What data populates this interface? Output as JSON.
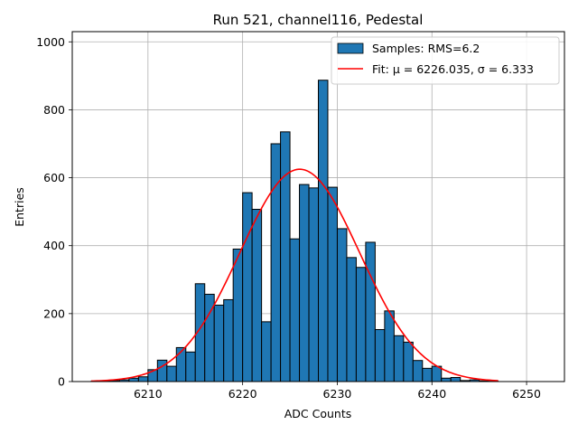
{
  "chart_data": {
    "type": "bar",
    "title": "Run 521, channel116, Pedestal",
    "xlabel": "ADC Counts",
    "ylabel": "Entries",
    "xlim": [
      6202,
      6254
    ],
    "ylim": [
      0,
      1030
    ],
    "xticks": [
      6210,
      6220,
      6230,
      6240,
      6250
    ],
    "yticks": [
      0,
      200,
      400,
      600,
      800,
      1000
    ],
    "grid": true,
    "legend_position": "top-right",
    "legend": [
      "Samples: RMS=6.2",
      "Fit: μ = 6226.035, σ = 6.333"
    ],
    "bar_color": "#1f77b4",
    "fit_color": "#ff0000",
    "bin_width": 1,
    "bin_starts": [
      6204,
      6205,
      6206,
      6207,
      6208,
      6209,
      6210,
      6211,
      6212,
      6213,
      6214,
      6215,
      6216,
      6217,
      6218,
      6219,
      6220,
      6221,
      6222,
      6223,
      6224,
      6225,
      6226,
      6227,
      6228,
      6229,
      6230,
      6231,
      6232,
      6233,
      6234,
      6235,
      6236,
      6237,
      6238,
      6239,
      6240,
      6241,
      6242,
      6243,
      6244,
      6245,
      6246
    ],
    "counts": [
      1,
      2,
      3,
      5,
      10,
      14,
      35,
      63,
      45,
      100,
      87,
      288,
      257,
      225,
      241,
      390,
      556,
      507,
      176,
      700,
      735,
      420,
      580,
      570,
      887,
      572,
      450,
      365,
      336,
      410,
      153,
      208,
      135,
      116,
      62,
      39,
      45,
      10,
      12,
      3,
      5,
      2,
      1
    ],
    "series": [
      {
        "name": "Samples: RMS=6.2",
        "kind": "histogram"
      },
      {
        "name": "Fit: μ = 6226.035, σ = 6.333",
        "kind": "gaussian",
        "mu": 6226.035,
        "sigma": 6.333,
        "amplitude": 625,
        "x_range": [
          6204,
          6247
        ]
      }
    ]
  }
}
